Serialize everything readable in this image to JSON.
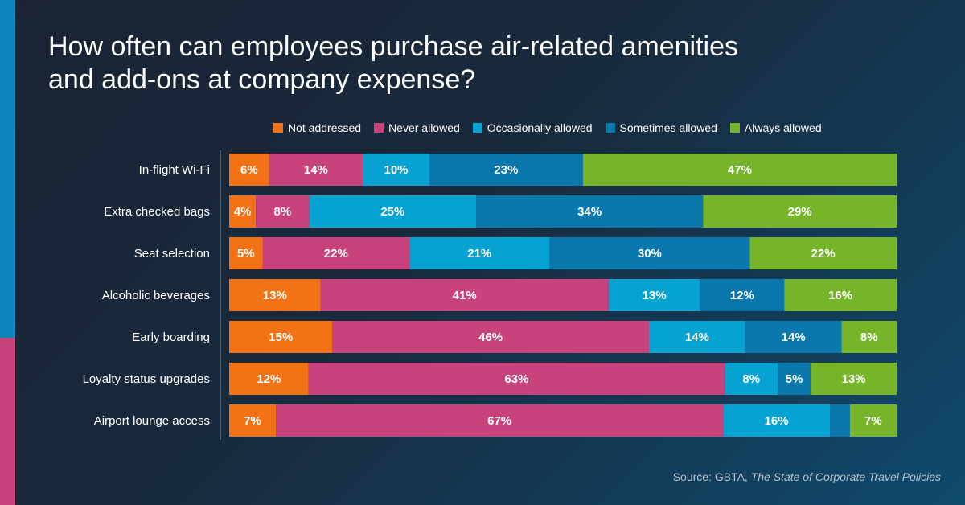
{
  "title": "How often can employees purchase air-related amenities and add-ons at company expense?",
  "source": {
    "prefix": "Source: GBTA, ",
    "publication": "The State of Corporate Travel Policies"
  },
  "chart_data": {
    "type": "bar",
    "orientation": "horizontal",
    "stacked": true,
    "categories": [
      "In-flight Wi-Fi",
      "Extra checked bags",
      "Seat selection",
      "Alcoholic beverages",
      "Early boarding",
      "Loyalty status upgrades",
      "Airport lounge access"
    ],
    "series": [
      {
        "name": "Not addressed",
        "color": "#f47216",
        "values": [
          6,
          4,
          5,
          13,
          15,
          12,
          7
        ],
        "labels": [
          "6%",
          "4%",
          "5%",
          "13%",
          "15%",
          "12%",
          "7%"
        ]
      },
      {
        "name": "Never allowed",
        "color": "#c8427b",
        "values": [
          14,
          8,
          22,
          41,
          46,
          63,
          67
        ],
        "labels": [
          "14%",
          "8%",
          "22%",
          "41%",
          "46%",
          "63%",
          "67%"
        ]
      },
      {
        "name": "Occasionally allowed",
        "color": "#06a3d2",
        "values": [
          10,
          25,
          21,
          13,
          14,
          8,
          16
        ],
        "labels": [
          "10%",
          "25%",
          "21%",
          "13%",
          "14%",
          "8%",
          "16%"
        ]
      },
      {
        "name": "Sometimes allowed",
        "color": "#0a78ad",
        "values": [
          23,
          34,
          30,
          12,
          14,
          5,
          3
        ],
        "labels": [
          "23%",
          "34%",
          "30%",
          "12%",
          "14%",
          "5%",
          ""
        ]
      },
      {
        "name": "Always allowed",
        "color": "#76b42a",
        "values": [
          47,
          29,
          22,
          16,
          8,
          13,
          7
        ],
        "labels": [
          "47%",
          "29%",
          "22%",
          "16%",
          "8%",
          "13%",
          "7%"
        ]
      }
    ],
    "legend_position": "top",
    "grid": false
  }
}
